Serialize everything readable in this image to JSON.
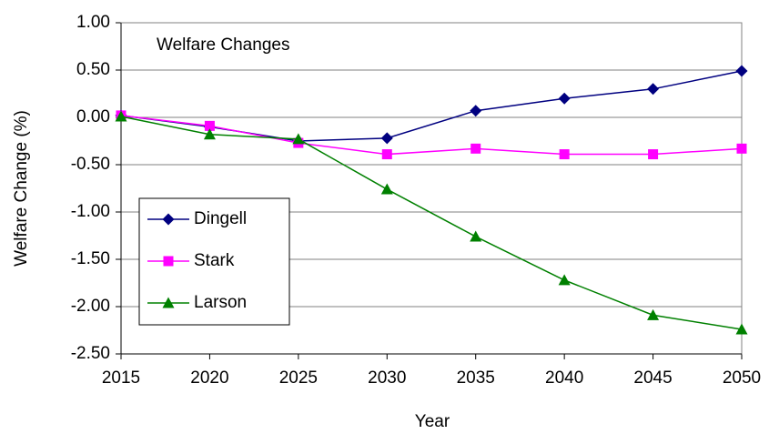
{
  "chart_data": {
    "type": "line",
    "title": "Welfare Changes",
    "x_label": "Year",
    "y_label": "Welfare Change (%)",
    "x": [
      2015,
      2020,
      2025,
      2030,
      2035,
      2040,
      2045,
      2050
    ],
    "xlim": [
      2015,
      2050
    ],
    "xticks": [
      2015,
      2020,
      2025,
      2030,
      2035,
      2040,
      2045,
      2050
    ],
    "ylim": [
      -2.5,
      1.0
    ],
    "yticks": [
      {
        "value": -2.5,
        "label": "-2.50"
      },
      {
        "value": -2.0,
        "label": "-2.00"
      },
      {
        "value": -1.5,
        "label": "-1.50"
      },
      {
        "value": -1.0,
        "label": "-1.00"
      },
      {
        "value": -0.5,
        "label": "-0.50"
      },
      {
        "value": 0,
        "label": "0.00"
      },
      {
        "value": 0.5,
        "label": "0.50"
      },
      {
        "value": 1.0,
        "label": "1.00"
      }
    ],
    "grid": true,
    "legend": "bottom-left",
    "series": [
      {
        "name": "Dingell",
        "color": "#000080",
        "marker": "diamond",
        "values": [
          0.02,
          -0.1,
          -0.25,
          -0.22,
          0.07,
          0.2,
          0.3,
          0.49
        ]
      },
      {
        "name": "Stark",
        "color": "#ff00ff",
        "marker": "square",
        "values": [
          0.02,
          -0.09,
          -0.27,
          -0.39,
          -0.33,
          -0.39,
          -0.39,
          -0.33
        ]
      },
      {
        "name": "Larson",
        "color": "#008000",
        "marker": "triangle",
        "values": [
          0.01,
          -0.18,
          -0.23,
          -0.76,
          -1.26,
          -1.72,
          -2.09,
          -2.24
        ]
      }
    ]
  }
}
